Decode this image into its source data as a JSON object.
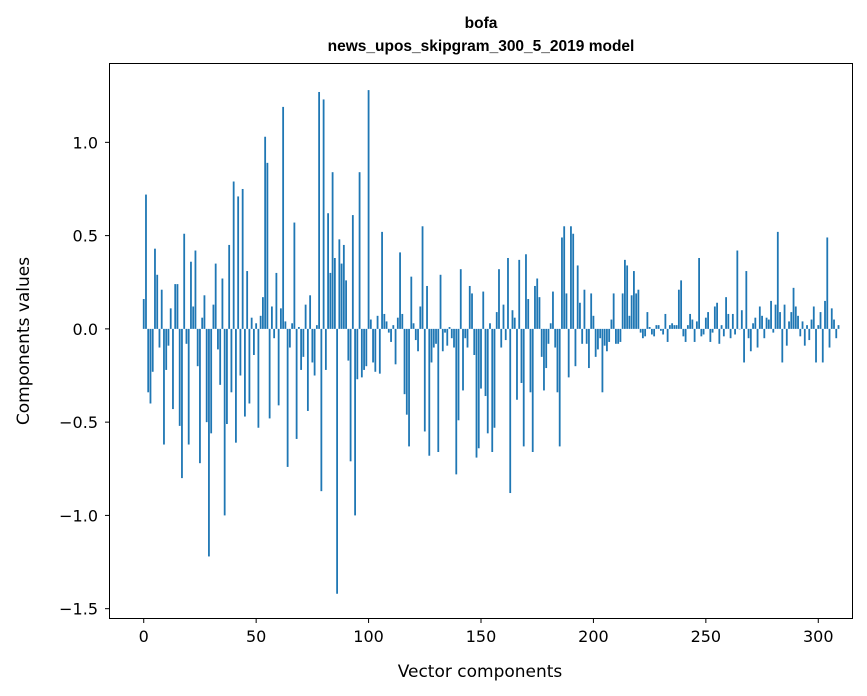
{
  "chart_data": {
    "type": "bar",
    "title": "bofa",
    "subtitle": "news_upos_skipgram_300_5_2019 model",
    "xlabel": "Vector components",
    "ylabel": "Components values",
    "xlim": [
      -15,
      315
    ],
    "ylim": [
      -1.55,
      1.42
    ],
    "xticks": [
      0,
      50,
      100,
      150,
      200,
      250,
      300
    ],
    "yticks": [
      -1.5,
      -1.0,
      -0.5,
      0.0,
      0.5,
      1.0
    ],
    "ytick_labels": [
      "−1.5",
      "−1.0",
      "−0.5",
      "0.0",
      "0.5",
      "1.0"
    ],
    "bar_color": "#1f77b4",
    "grid": false,
    "values": [
      0.16,
      0.72,
      -0.34,
      -0.4,
      -0.23,
      0.43,
      0.29,
      -0.1,
      0.21,
      -0.62,
      -0.22,
      -0.09,
      0.11,
      -0.43,
      0.24,
      0.24,
      -0.52,
      -0.8,
      0.51,
      -0.08,
      -0.62,
      0.36,
      0.12,
      0.42,
      -0.2,
      -0.72,
      0.06,
      0.18,
      -0.5,
      -1.22,
      -0.56,
      0.13,
      0.35,
      -0.11,
      -0.3,
      0.27,
      -1.0,
      -0.51,
      0.45,
      -0.34,
      0.79,
      -0.61,
      0.71,
      -0.25,
      0.75,
      -0.47,
      0.31,
      -0.4,
      0.06,
      -0.14,
      0.03,
      -0.53,
      0.07,
      0.17,
      1.03,
      0.89,
      -0.48,
      0.12,
      -0.05,
      0.3,
      -0.41,
      0.11,
      1.19,
      0.04,
      -0.74,
      -0.1,
      0.03,
      0.57,
      -0.59,
      0.01,
      -0.22,
      -0.15,
      0.13,
      -0.44,
      0.18,
      -0.18,
      -0.25,
      0.02,
      1.27,
      -0.87,
      1.23,
      -0.22,
      0.62,
      0.3,
      0.84,
      0.38,
      -1.42,
      0.48,
      0.35,
      0.45,
      0.26,
      -0.17,
      -0.71,
      0.61,
      -1.0,
      -0.27,
      0.84,
      -0.26,
      -0.22,
      -0.2,
      1.28,
      0.05,
      -0.18,
      -0.23,
      0.07,
      -0.24,
      0.52,
      0.08,
      0.04,
      -0.02,
      -0.07,
      0.02,
      -0.19,
      0.06,
      0.41,
      0.08,
      -0.35,
      -0.46,
      -0.63,
      0.28,
      0.03,
      -0.06,
      -0.12,
      0.12,
      0.55,
      -0.55,
      0.23,
      -0.68,
      -0.18,
      -0.1,
      -0.08,
      -0.66,
      0.29,
      -0.12,
      -0.02,
      -0.09,
      0.01,
      -0.05,
      -0.1,
      -0.78,
      -0.49,
      0.32,
      -0.33,
      -0.05,
      -0.1,
      0.23,
      0.19,
      -0.14,
      -0.69,
      -0.64,
      -0.32,
      0.2,
      -0.36,
      -0.56,
      0.03,
      -0.66,
      -0.53,
      0.09,
      0.32,
      -0.1,
      0.13,
      -0.06,
      0.38,
      -0.88,
      0.1,
      0.06,
      -0.38,
      0.37,
      -0.29,
      -0.63,
      0.4,
      0.16,
      -0.34,
      -0.66,
      0.23,
      0.27,
      0.17,
      -0.15,
      -0.33,
      -0.21,
      -0.08,
      0.03,
      0.2,
      -0.1,
      -0.34,
      -0.63,
      0.49,
      0.55,
      0.19,
      -0.26,
      0.55,
      0.51,
      -0.2,
      0.34,
      0.14,
      -0.08,
      0.21,
      -0.08,
      -0.21,
      0.19,
      0.07,
      -0.15,
      -0.11,
      -0.05,
      -0.34,
      -0.09,
      -0.12,
      -0.07,
      0.05,
      0.19,
      -0.08,
      -0.08,
      -0.07,
      0.19,
      0.37,
      0.34,
      0.07,
      0.18,
      0.31,
      0.19,
      0.21,
      -0.02,
      -0.05,
      -0.04,
      0.09,
      0.01,
      -0.03,
      -0.04,
      0.02,
      0.02,
      -0.01,
      -0.03,
      0.08,
      -0.07,
      0.02,
      0.03,
      0.02,
      0.02,
      0.21,
      0.26,
      -0.04,
      -0.07,
      0.02,
      0.08,
      0.05,
      -0.07,
      0.04,
      0.38,
      -0.04,
      -0.03,
      0.06,
      0.09,
      -0.07,
      -0.02,
      0.12,
      0.14,
      -0.08,
      0.02,
      -0.04,
      0.17,
      0.08,
      -0.05,
      0.08,
      -0.03,
      0.42,
      0.0,
      0.1,
      -0.18,
      0.31,
      -0.05,
      -0.12,
      0.03,
      0.06,
      -0.1,
      0.12,
      0.07,
      -0.05,
      0.06,
      0.05,
      0.15,
      -0.02,
      0.13,
      0.52,
      0.09,
      -0.18,
      0.13,
      -0.09,
      0.04,
      0.09,
      0.22,
      0.12,
      0.07,
      -0.04,
      0.04,
      -0.09,
      0.02,
      -0.06,
      0.05,
      0.12,
      -0.18,
      0.02,
      0.09,
      -0.18,
      0.15,
      0.49,
      -0.1,
      0.11,
      0.05,
      -0.05,
      0.02
    ]
  }
}
